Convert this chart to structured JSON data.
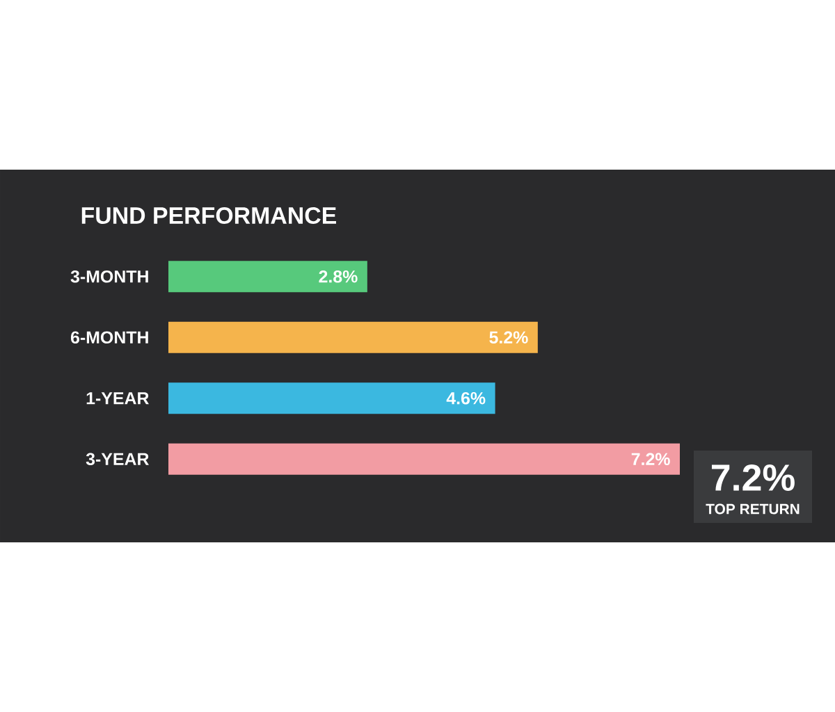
{
  "chart_data": {
    "type": "bar",
    "orientation": "horizontal",
    "title": "FUND PERFORMANCE",
    "categories": [
      "3-MONTH",
      "6-MONTH",
      "1-YEAR",
      "3-YEAR"
    ],
    "values": [
      2.8,
      5.2,
      4.6,
      7.2
    ],
    "colors": [
      "#57c97c",
      "#f5b44c",
      "#3bb8e0",
      "#f29ca3"
    ],
    "value_labels": [
      "2.8%",
      "5.2%",
      "4.6%",
      "7.2%"
    ],
    "annotations": [
      "7.2%",
      "TOP RETURN"
    ]
  }
}
